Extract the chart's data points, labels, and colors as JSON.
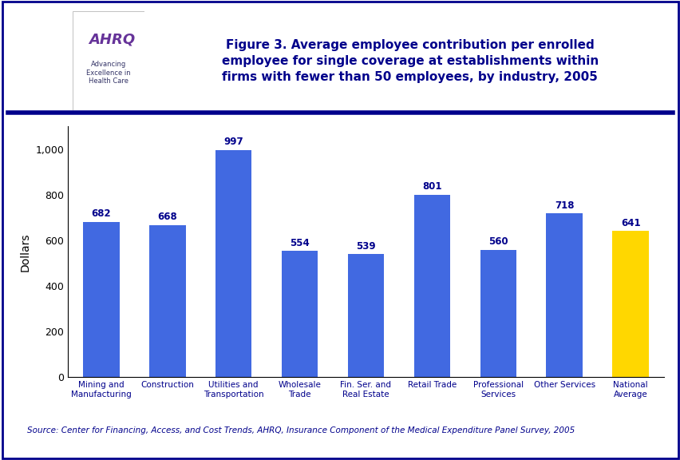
{
  "categories": [
    "Mining and\nManufacturing",
    "Construction",
    "Utilities and\nTransportation",
    "Wholesale\nTrade",
    "Fin. Ser. and\nReal Estate",
    "Retail Trade",
    "Professional\nServices",
    "Other Services",
    "National\nAverage"
  ],
  "values": [
    682,
    668,
    997,
    554,
    539,
    801,
    560,
    718,
    641
  ],
  "bar_colors": [
    "#4169E1",
    "#4169E1",
    "#4169E1",
    "#4169E1",
    "#4169E1",
    "#4169E1",
    "#4169E1",
    "#4169E1",
    "#FFD700"
  ],
  "title": "Figure 3. Average employee contribution per enrolled\nemployee for single coverage at establishments within\nfirms with fewer than 50 employees, by industry, 2005",
  "ylabel": "Dollars",
  "ylim": [
    0,
    1100
  ],
  "yticks": [
    0,
    200,
    400,
    600,
    800,
    1000
  ],
  "ytick_labels": [
    "0",
    "200",
    "400",
    "600",
    "800",
    "1,000"
  ],
  "source_text": "Source: Center for Financing, Access, and Cost Trends, AHRQ, Insurance Component of the Medical Expenditure Panel Survey, 2005",
  "bg_color": "#FFFFFF",
  "bar_color_main": "#4169E1",
  "bar_color_last": "#FFD700",
  "title_color": "#00008B",
  "value_label_color": "#00008B",
  "source_color": "#00008B",
  "border_color": "#00008B",
  "hhs_bg_color": "#3399CC",
  "ahrq_text_color": "#663399",
  "ahrq_sub_color": "#333333"
}
